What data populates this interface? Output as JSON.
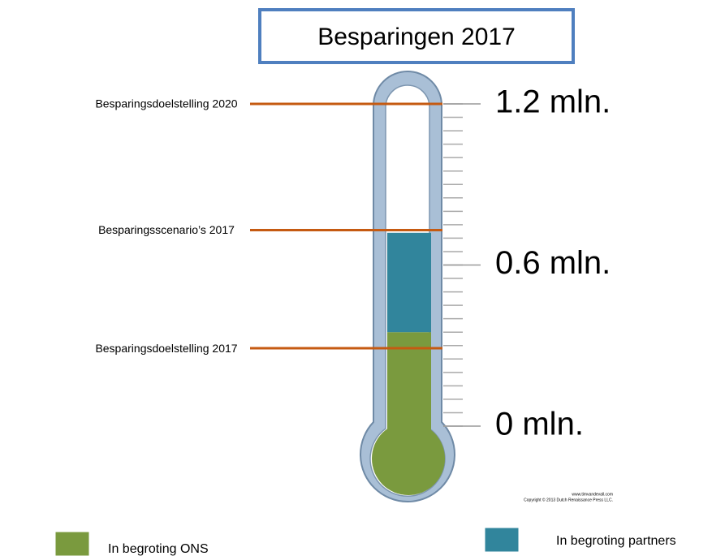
{
  "chart_data": {
    "type": "thermometer",
    "title": "Besparingen 2017",
    "ylim": [
      0,
      1.2
    ],
    "yticks": [
      {
        "value": 0,
        "label": "0 mln."
      },
      {
        "value": 0.6,
        "label": "0.6 mln."
      },
      {
        "value": 1.2,
        "label": "1.2 mln."
      }
    ],
    "yminor": [
      0,
      0.05,
      0.1,
      0.15,
      0.2,
      0.25,
      0.3,
      0.35,
      0.4,
      0.45,
      0.5,
      0.55,
      0.6,
      0.65,
      0.7,
      0.75,
      0.8,
      0.85,
      0.9,
      0.95,
      1,
      1.05,
      1.1,
      1.15,
      1.2
    ],
    "series": [
      {
        "name": "In begroting ONS",
        "color": "#7a9a3e",
        "values": [
          0.35
        ]
      },
      {
        "name": "In begroting partners",
        "color": "#31859c",
        "values": [
          0.37
        ]
      }
    ],
    "annotations": [
      {
        "label": "Besparingsdoelstelling 2020",
        "value": 1.2
      },
      {
        "label": "Besparingsscenario’s 2017",
        "value": 0.73
      },
      {
        "label": "Besparingsdoelstelling 2017",
        "value": 0.29
      }
    ],
    "annotation_color": "#c55a11",
    "credit": [
      "www.timvandevall.com",
      "Copyright © 2013 Dutch Renaissance Press LLC."
    ]
  }
}
